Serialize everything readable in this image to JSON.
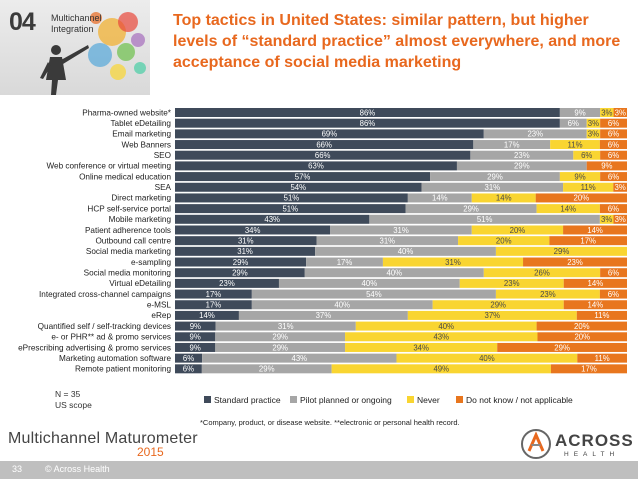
{
  "header": {
    "section_number": "04",
    "section_name": "Multichannel Integration",
    "title": "Top tactics in United States: similar pattern, but higher levels of “standard practice” almost everywhere, and more acceptance of social media marketing"
  },
  "note": {
    "n": "N = 35",
    "scope": "US scope"
  },
  "footnote": "*Company, product, or disease website. **electronic or personal health record.",
  "footer": {
    "brand": "Multichannel Maturometer",
    "year": "2015",
    "page": "33",
    "copyright": "© Across Health",
    "logo_text": "ACROSS",
    "logo_sub": "HEALTH"
  },
  "colors": {
    "standard": "#3f4a5a",
    "pilot": "#a6a6a6",
    "never": "#f9d531",
    "dontknow": "#e8761e",
    "accent": "#e8681e"
  },
  "chart_data": {
    "type": "bar",
    "orientation": "horizontal",
    "stacked": true,
    "percent": true,
    "categories": [
      "Pharma-owned website*",
      "Tablet eDetailing",
      "Email marketing",
      "Web Banners",
      "SEO",
      "Web conference or virtual meeting",
      "Online medical education",
      "SEA",
      "Direct marketing",
      "HCP self-service portal",
      "Mobile marketing",
      "Patient adherence tools",
      "Outbound call centre",
      "Social media marketing",
      "e-sampling",
      "Social media monitoring",
      "Virtual eDetailing",
      "Integrated cross-channel campaigns",
      "e-MSL",
      "eRep",
      "Quantified self / self-tracking devices",
      "e- or PHR** ad & promo services",
      "ePrescribing advertising & promo services",
      "Marketing automation software",
      "Remote patient monitoring"
    ],
    "series": [
      {
        "name": "Standard practice",
        "key": "standard",
        "values": [
          86,
          86,
          69,
          66,
          66,
          63,
          57,
          54,
          51,
          51,
          43,
          34,
          31,
          31,
          29,
          29,
          23,
          17,
          17,
          14,
          9,
          9,
          9,
          6,
          6
        ]
      },
      {
        "name": "Pilot planned or ongoing",
        "key": "pilot",
        "values": [
          9,
          6,
          23,
          17,
          23,
          29,
          29,
          31,
          14,
          29,
          51,
          31,
          31,
          40,
          17,
          40,
          40,
          54,
          40,
          37,
          31,
          29,
          29,
          43,
          29
        ]
      },
      {
        "name": "Never",
        "key": "never",
        "values": [
          3,
          3,
          3,
          11,
          6,
          0,
          9,
          11,
          14,
          14,
          3,
          20,
          20,
          29,
          31,
          26,
          23,
          23,
          29,
          37,
          40,
          43,
          34,
          40,
          49
        ]
      },
      {
        "name": "Do not know / not applicable",
        "key": "dontknow",
        "values": [
          3,
          6,
          6,
          6,
          6,
          9,
          6,
          3,
          20,
          6,
          3,
          14,
          17,
          0,
          23,
          6,
          14,
          6,
          14,
          11,
          20,
          20,
          29,
          11,
          17
        ]
      }
    ],
    "value_labels": [
      [
        "86%",
        "9%",
        "3%",
        "3%"
      ],
      [
        "86%",
        "6%",
        "3%",
        "6%"
      ],
      [
        "69%",
        "23%",
        "3%",
        "6%"
      ],
      [
        "66%",
        "17%",
        "11%",
        "6%"
      ],
      [
        "66%",
        "23%",
        "6%",
        "6%"
      ],
      [
        "63%",
        "29%",
        "",
        "9%"
      ],
      [
        "57%",
        "29%",
        "9%",
        "6%"
      ],
      [
        "54%",
        "31%",
        "11%",
        "3%"
      ],
      [
        "51%",
        "14%",
        "14%",
        "20%"
      ],
      [
        "51%",
        "29%",
        "14%",
        "6%"
      ],
      [
        "43%",
        "51%",
        "3%",
        "3%"
      ],
      [
        "34%",
        "31%",
        "20%",
        "14%"
      ],
      [
        "31%",
        "31%",
        "20%",
        "17%"
      ],
      [
        "31%",
        "40%",
        "29%",
        ""
      ],
      [
        "29%",
        "17%",
        "31%",
        "23%"
      ],
      [
        "29%",
        "40%",
        "26%",
        "6%"
      ],
      [
        "23%",
        "40%",
        "23%",
        "14%"
      ],
      [
        "17%",
        "54%",
        "23%",
        "6%"
      ],
      [
        "17%",
        "40%",
        "29%",
        "14%"
      ],
      [
        "14%",
        "37%",
        "37%",
        "11%"
      ],
      [
        "9%",
        "31%",
        "40%",
        "20%"
      ],
      [
        "9%",
        "29%",
        "43%",
        "20%"
      ],
      [
        "9%",
        "29%",
        "34%",
        "29%"
      ],
      [
        "6%",
        "43%",
        "40%",
        "11%"
      ],
      [
        "6%",
        "29%",
        "49%",
        "17%"
      ]
    ],
    "xlim": [
      0,
      100
    ],
    "legend": "bottom",
    "grid": false
  }
}
